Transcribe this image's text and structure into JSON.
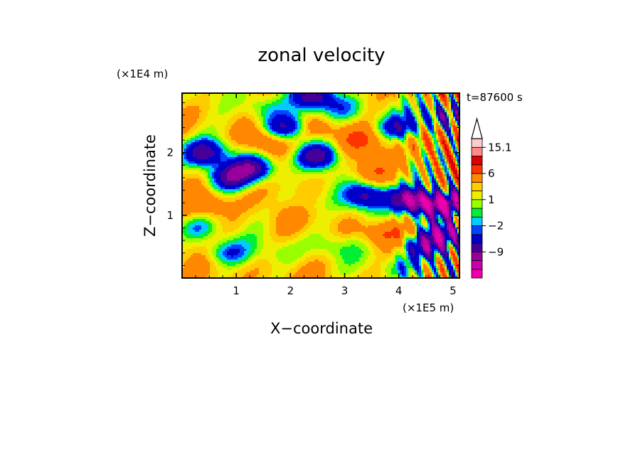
{
  "chart_data": {
    "type": "heatmap",
    "title": "zonal velocity",
    "xlabel": "X−coordinate",
    "ylabel": "Z−coordinate",
    "x_unit": "(×1E5 m)",
    "y_unit": "(×1E4 m)",
    "time_label": "t=87600 s",
    "xlim": [
      0.0,
      5.12
    ],
    "ylim": [
      0.0,
      2.95
    ],
    "x_ticks": [
      1,
      2,
      3,
      4,
      5
    ],
    "y_ticks": [
      1,
      2
    ],
    "x_tick_labels": [
      "1",
      "2",
      "3",
      "4",
      "5"
    ],
    "y_tick_labels": [
      "1",
      "2"
    ],
    "colorbar": {
      "levels": [
        -15,
        -12,
        -9,
        -6,
        -3,
        -2,
        -1,
        0,
        1,
        2,
        3,
        6,
        9,
        12,
        15.1
      ],
      "colors": [
        "#ee00aa",
        "#cc00aa",
        "#990099",
        "#440099",
        "#0000cc",
        "#0044ff",
        "#00ccff",
        "#00ee33",
        "#99ff00",
        "#eeee00",
        "#ffcc00",
        "#ff8800",
        "#ff3300",
        "#dd0000",
        "#ff8888",
        "#ffcccc"
      ],
      "labels": [
        {
          "text": "15.1",
          "value": 15.1
        },
        {
          "text": "6",
          "value": 6
        },
        {
          "text": "1",
          "value": 1
        },
        {
          "text": "−2",
          "value": -2
        },
        {
          "text": "−9",
          "value": -9
        }
      ],
      "extend": "max"
    },
    "field_features": [
      {
        "x": 0.7,
        "z": 0.4,
        "value": 0
      },
      {
        "x": 1.8,
        "z": 0.4,
        "value": 0
      },
      {
        "x": 2.8,
        "z": 0.5,
        "value": 0
      },
      {
        "x": 2.2,
        "z": 1.2,
        "value": 0
      },
      {
        "x": 3.5,
        "z": 1.0,
        "value": 0
      },
      {
        "x": 0.5,
        "z": 1.15,
        "value": 6
      },
      {
        "x": 2.5,
        "z": 2.4,
        "value": 6
      },
      {
        "x": 3.5,
        "z": 1.7,
        "value": 6
      },
      {
        "x": 3.7,
        "z": 0.7,
        "value": 6
      },
      {
        "x": 1.5,
        "z": 2.2,
        "value": 6
      },
      {
        "x": 3.3,
        "z": 2.2,
        "value": 6
      },
      {
        "x": 4.6,
        "z": 2.2,
        "value": 6
      },
      {
        "x": 1.0,
        "z": 0.8,
        "value": 3
      },
      {
        "x": 2.0,
        "z": 0.9,
        "value": 3
      },
      {
        "x": 3.0,
        "z": 0.8,
        "value": 3
      },
      {
        "x": 1.2,
        "z": 1.5,
        "value": 3
      },
      {
        "x": 2.2,
        "z": 1.6,
        "value": 3
      },
      {
        "x": 1.9,
        "z": 2.4,
        "value": -9
      },
      {
        "x": 2.5,
        "z": 1.95,
        "value": -9
      },
      {
        "x": 0.9,
        "z": 1.6,
        "value": -9
      },
      {
        "x": 1.3,
        "z": 1.75,
        "value": -9
      },
      {
        "x": 3.4,
        "z": 1.3,
        "value": -9
      },
      {
        "x": 4.2,
        "z": 1.25,
        "value": -12
      },
      {
        "x": 4.6,
        "z": 1.15,
        "value": -9
      },
      {
        "x": 4.5,
        "z": 0.5,
        "value": -9
      },
      {
        "x": 2.45,
        "z": 2.9,
        "value": -9
      },
      {
        "x": 0.4,
        "z": 2.0,
        "value": -9
      },
      {
        "x": 4.0,
        "z": 2.4,
        "value": -6
      },
      {
        "x": 0.3,
        "z": 0.8,
        "value": -2
      },
      {
        "x": 0.9,
        "z": 0.4,
        "value": -2
      },
      {
        "x": 1.5,
        "z": 2.7,
        "value": -2
      },
      {
        "x": 4.1,
        "z": 0.15,
        "value": -2
      },
      {
        "x": 3.0,
        "z": 2.7,
        "value": -2
      },
      {
        "x": 4.85,
        "z": 0.7,
        "value": -12
      },
      {
        "x": 5.0,
        "z": 1.2,
        "value": -9
      },
      {
        "x": 4.8,
        "z": 2.6,
        "value": -6
      }
    ]
  }
}
